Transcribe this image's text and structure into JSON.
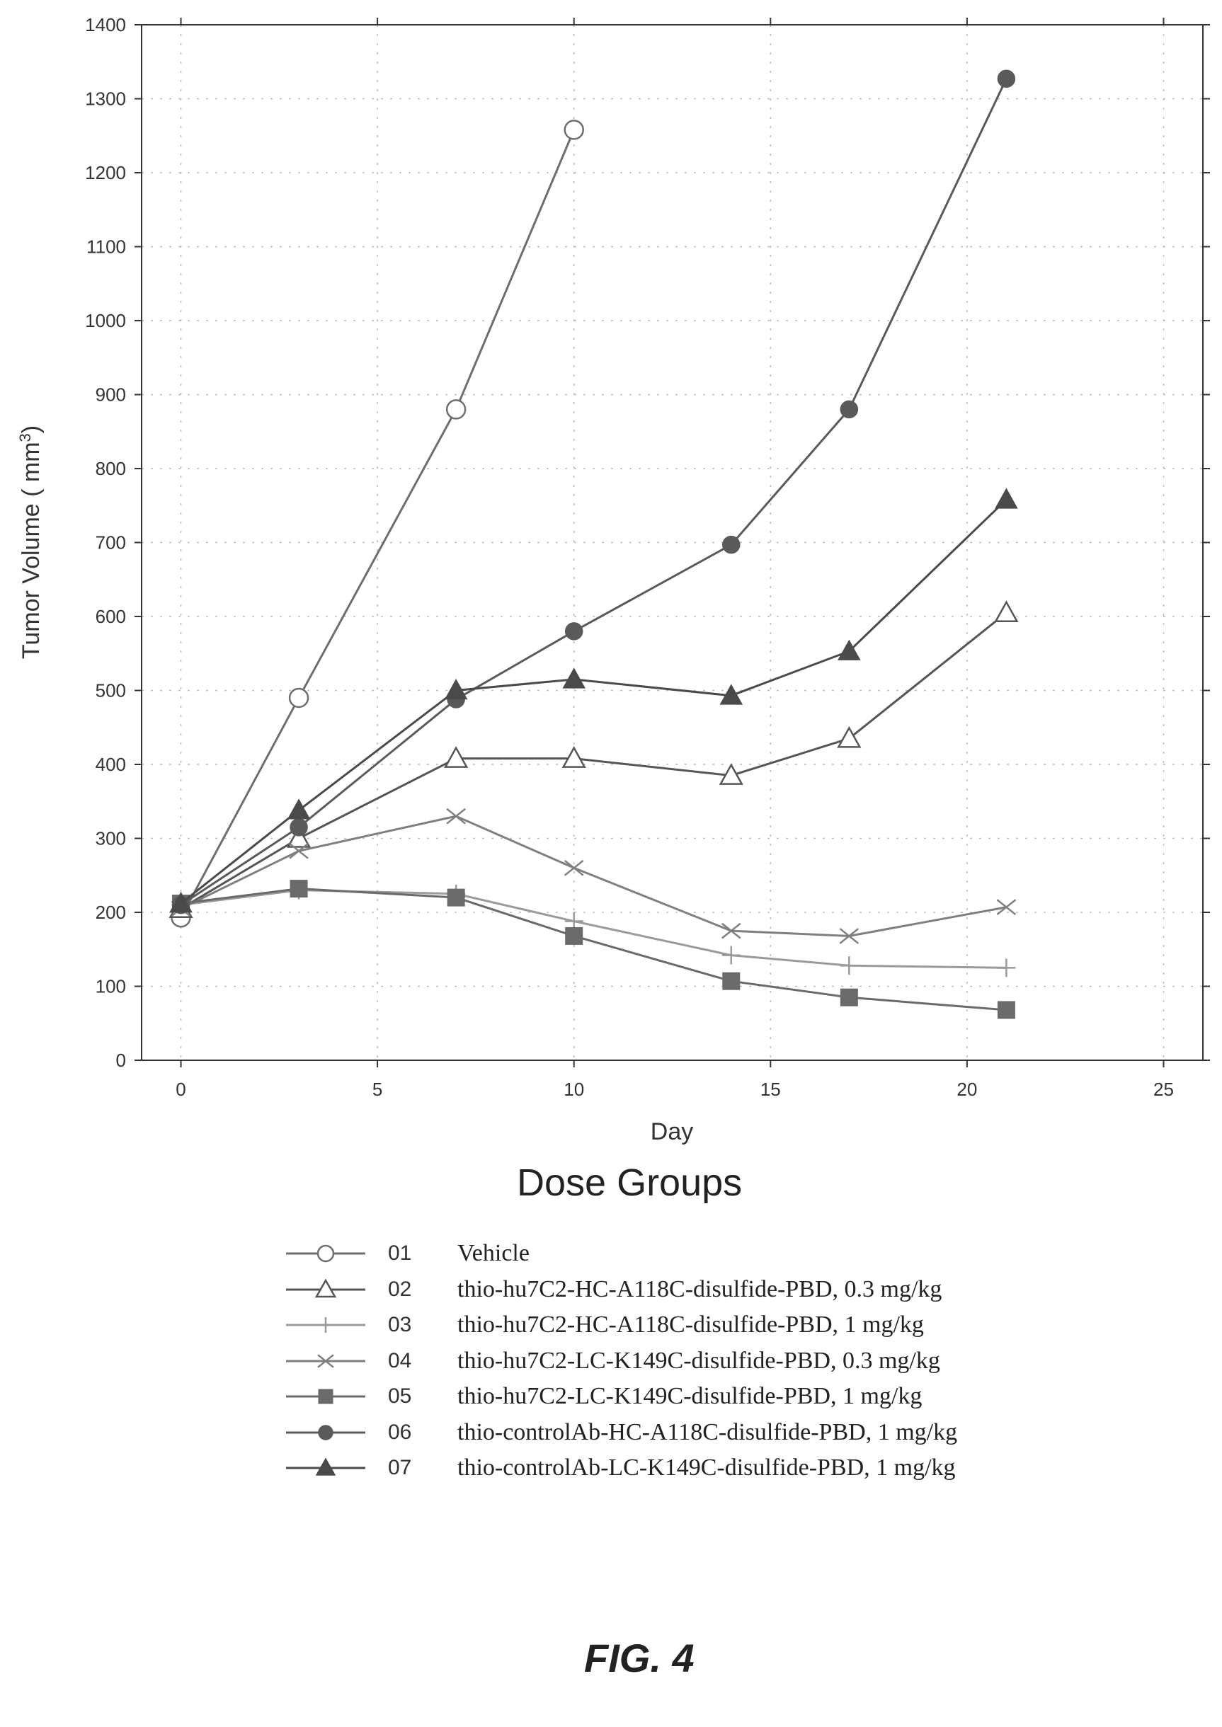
{
  "chart_data": {
    "type": "line",
    "xlabel": "Day",
    "ylabel": "Tumor Volume ( mm³)",
    "xlim": [
      -1,
      26
    ],
    "ylim": [
      0,
      1400
    ],
    "xticks": [
      0,
      5,
      10,
      15,
      20,
      25
    ],
    "yticks": [
      0,
      100,
      200,
      300,
      400,
      500,
      600,
      700,
      800,
      900,
      1000,
      1100,
      1200,
      1300,
      1400
    ],
    "grid": true,
    "legend_title": "Dose Groups",
    "legend_position": "bottom",
    "series": [
      {
        "code": "01",
        "name": "Vehicle",
        "marker": "circle-open",
        "color": "#6e6e6e",
        "x": [
          0,
          3,
          7,
          10
        ],
        "y": [
          193,
          490,
          880,
          1258
        ]
      },
      {
        "code": "02",
        "name": "thio-hu7C2-HC-A118C-disulfide-PBD, 0.3 mg/kg",
        "marker": "triangle-open",
        "color": "#555555",
        "x": [
          0,
          3,
          7,
          10,
          14,
          17,
          21
        ],
        "y": [
          205,
          300,
          408,
          408,
          385,
          435,
          605
        ]
      },
      {
        "code": "03",
        "name": "thio-hu7C2-HC-A118C-disulfide-PBD, 1 mg/kg",
        "marker": "plus",
        "color": "#9a9a9a",
        "x": [
          0,
          3,
          7,
          10,
          14,
          17,
          21
        ],
        "y": [
          210,
          230,
          225,
          188,
          142,
          128,
          125
        ]
      },
      {
        "code": "04",
        "name": "thio-hu7C2-LC-K149C-disulfide-PBD, 0.3 mg/kg",
        "marker": "x",
        "color": "#7f7f7f",
        "x": [
          0,
          3,
          7,
          10,
          14,
          17,
          21
        ],
        "y": [
          205,
          283,
          330,
          260,
          175,
          168,
          207
        ]
      },
      {
        "code": "05",
        "name": "thio-hu7C2-LC-K149C-disulfide-PBD, 1 mg/kg",
        "marker": "square",
        "color": "#6a6a6a",
        "x": [
          0,
          3,
          7,
          10,
          14,
          17,
          21
        ],
        "y": [
          212,
          232,
          220,
          168,
          107,
          85,
          68
        ]
      },
      {
        "code": "06",
        "name": "thio-controlAb-HC-A118C-disulfide-PBD, 1 mg/kg",
        "marker": "circle",
        "color": "#5a5a5a",
        "x": [
          0,
          3,
          7,
          10,
          14,
          17,
          21
        ],
        "y": [
          210,
          315,
          488,
          580,
          697,
          880,
          1327
        ]
      },
      {
        "code": "07",
        "name": "thio-controlAb-LC-K149C-disulfide-PBD, 1 mg/kg",
        "marker": "triangle",
        "color": "#4a4a4a",
        "x": [
          0,
          3,
          7,
          10,
          14,
          17,
          21
        ],
        "y": [
          212,
          338,
          500,
          515,
          493,
          553,
          758
        ]
      }
    ]
  },
  "figure_label": "FIG. 4"
}
